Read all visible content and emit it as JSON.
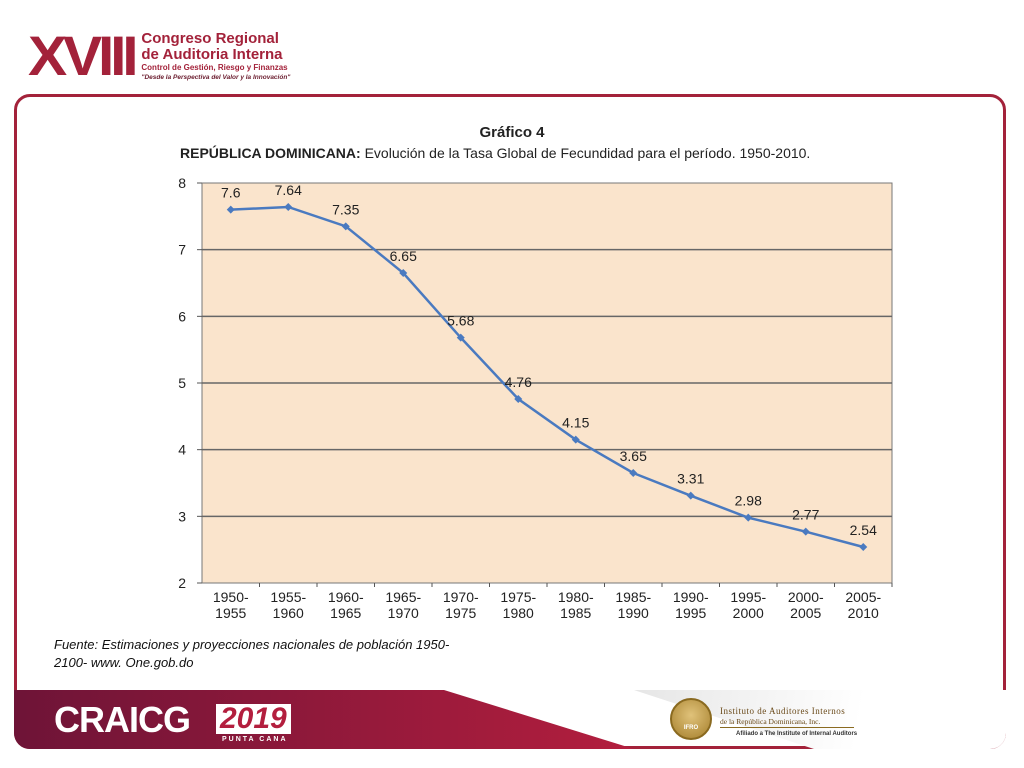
{
  "header": {
    "roman": "XVIII",
    "line1": "Congreso Regional",
    "line2": "de Auditoria Interna",
    "line3": "Control de Gestión, Riesgo y Finanzas",
    "line4": "\"Desde la Perspectiva del Valor y la Innovación\""
  },
  "chart_title": "Gráfico 4",
  "chart_subtitle_bold": "REPÚBLICA DOMINICANA:",
  "chart_subtitle_rest": " Evolución de la Tasa Global de Fecundidad para el período. 1950-2010.",
  "source": "Fuente: Estimaciones y proyecciones nacionales de población 1950-2100-  www. One.gob.do",
  "footer": {
    "brand": "CRAICG",
    "year": "2019",
    "place": "PUNTA CANA",
    "seal_text": "IFRO",
    "institute_line1": "Instituto de Auditores Internos",
    "institute_line2": "de la República Dominicana, Inc.",
    "institute_line3": "Afiliado a The Institute of Internal Auditors"
  },
  "colors": {
    "accent": "#a3223a",
    "plot_bg": "#fae4cc",
    "line": "#4a7ac0",
    "grid": "#666666"
  },
  "chart_data": {
    "type": "line",
    "title": "Gráfico 4",
    "subtitle": "REPÚBLICA DOMINICANA: Evolución de la Tasa Global de Fecundidad para el período. 1950-2010.",
    "categories": [
      [
        "1950-",
        "1955"
      ],
      [
        "1955-",
        "1960"
      ],
      [
        "1960-",
        "1965"
      ],
      [
        "1965-",
        "1970"
      ],
      [
        "1970-",
        "1975"
      ],
      [
        "1975-",
        "1980"
      ],
      [
        "1980-",
        "1985"
      ],
      [
        "1985-",
        "1990"
      ],
      [
        "1990-",
        "1995"
      ],
      [
        "1995-",
        "2000"
      ],
      [
        "2000-",
        "2005"
      ],
      [
        "2005-",
        "2010"
      ]
    ],
    "values": [
      7.6,
      7.64,
      7.35,
      6.65,
      5.68,
      4.76,
      4.15,
      3.65,
      3.31,
      2.98,
      2.77,
      2.54
    ],
    "data_labels": [
      "7.6",
      "7.64",
      "7.35",
      "6.65",
      "5.68",
      "4.76",
      "4.15",
      "3.65",
      "3.31",
      "2.98",
      "2.77",
      "2.54"
    ],
    "ylim": [
      2,
      8
    ],
    "yticks": [
      2,
      3,
      4,
      5,
      6,
      7,
      8
    ],
    "grid": true,
    "legend": "none"
  }
}
